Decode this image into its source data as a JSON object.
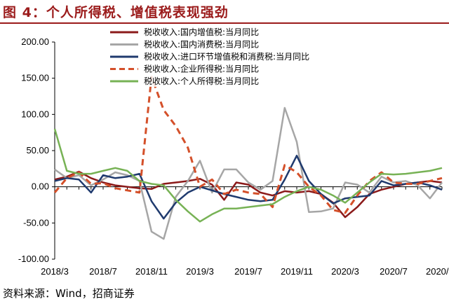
{
  "figure": {
    "title": "图 4：个人所得税、增值税表现强劲",
    "source": "资料来源：Wind，招商证券"
  },
  "chart_data": {
    "type": "line",
    "title": "",
    "xlabel": "",
    "ylabel": "",
    "ylim": [
      -100,
      200
    ],
    "yticks": [
      200,
      150,
      100,
      50,
      0,
      -50,
      -100
    ],
    "ytick_labels": [
      "200.00",
      "150.00",
      "100.00",
      "50.00",
      "0.00",
      "-50.00",
      "-100.00"
    ],
    "xlim": [
      "2018/3",
      "2020/11"
    ],
    "x": [
      "2018/3",
      "2018/4",
      "2018/5",
      "2018/6",
      "2018/7",
      "2018/8",
      "2018/9",
      "2018/10",
      "2018/11",
      "2018/12",
      "2019/1",
      "2019/2",
      "2019/3",
      "2019/4",
      "2019/5",
      "2019/6",
      "2019/7",
      "2019/8",
      "2019/9",
      "2019/10",
      "2019/11",
      "2019/12",
      "2020/1",
      "2020/2",
      "2020/3",
      "2020/4",
      "2020/5",
      "2020/6",
      "2020/7",
      "2020/8",
      "2020/9",
      "2020/10",
      "2020/11"
    ],
    "xtick_labels": [
      "2018/3",
      "2018/7",
      "2018/11",
      "2019/3",
      "2019/7",
      "2019/11",
      "2020/3",
      "2020/7",
      "2020/11"
    ],
    "grid": false,
    "legend_position": "top-center",
    "series": [
      {
        "name": "税收收入:国内增值税:当月同比",
        "color": "#8b1a1a",
        "dash": "solid",
        "values": [
          10,
          14,
          21,
          12,
          6,
          2,
          0,
          -2,
          -3,
          4,
          6,
          8,
          11,
          3,
          -18,
          6,
          3,
          -8,
          -12,
          -6,
          -8,
          -6,
          -10,
          -22,
          -42,
          -28,
          -10,
          -4,
          0,
          4,
          6,
          8,
          6
        ]
      },
      {
        "name": "税收收入:国内消费税:当月同比",
        "color": "#a6a6a6",
        "dash": "solid",
        "values": [
          24,
          12,
          16,
          2,
          10,
          20,
          16,
          8,
          -62,
          -72,
          -14,
          8,
          36,
          -8,
          24,
          24,
          6,
          -4,
          8,
          109,
          62,
          -35,
          -34,
          -30,
          6,
          3,
          -8,
          14,
          6,
          8,
          2,
          -16,
          6
        ]
      },
      {
        "name": "税收收入:进口环节增值税和消费税:当月同比",
        "color": "#1f3a6e",
        "dash": "solid",
        "values": [
          8,
          12,
          10,
          -8,
          16,
          12,
          14,
          18,
          -20,
          -44,
          -22,
          -8,
          0,
          -5,
          -10,
          -14,
          -18,
          -20,
          -18,
          10,
          43,
          8,
          -10,
          -23,
          -16,
          -14,
          -12,
          8,
          2,
          4,
          6,
          2,
          -4
        ]
      },
      {
        "name": "税收收入:企业所得税:当月同比",
        "color": "#d4502a",
        "dash": "dash",
        "values": [
          -8,
          12,
          20,
          4,
          5,
          -2,
          -5,
          -8,
          152,
          106,
          84,
          54,
          0,
          10,
          -10,
          -4,
          -8,
          -10,
          -28,
          30,
          20,
          0,
          -12,
          -32,
          -36,
          -12,
          8,
          20,
          6,
          4,
          4,
          8,
          12
        ]
      },
      {
        "name": "税收收入:个人所得税:当月同比",
        "color": "#77b255",
        "dash": "solid",
        "values": [
          80,
          22,
          18,
          18,
          22,
          26,
          22,
          8,
          4,
          2,
          -18,
          -34,
          -48,
          -38,
          -30,
          -30,
          -28,
          -26,
          -24,
          -14,
          -6,
          0,
          -4,
          -12,
          -22,
          -8,
          6,
          18,
          17,
          18,
          20,
          22,
          26
        ]
      }
    ]
  }
}
